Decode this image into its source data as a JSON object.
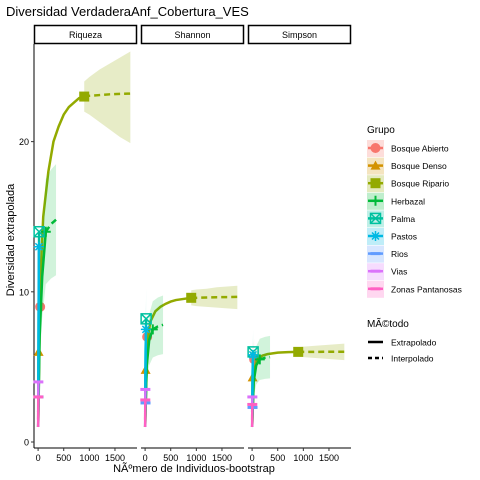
{
  "chart_data": {
    "type": "line",
    "title": "Diversidad VerdaderaAnf_Cobertura_VES",
    "xlabel": "NÃºmero de Individuos-bootstrap",
    "ylabel": "Diversidad extrapolada",
    "facets": [
      "Riqueza",
      "Shannon",
      "Simpson"
    ],
    "xlim": [
      -80,
      1930
    ],
    "ylim": [
      -0.4,
      26.5
    ],
    "x_ticks": [
      0,
      500,
      1000,
      1500
    ],
    "y_ticks": [
      0,
      10,
      20
    ],
    "grid": false,
    "legend_position": "right",
    "legend_group_title": "Grupo",
    "legend_method_title": "MÃ©todo",
    "methods": [
      "Extrapolado",
      "Interpolado"
    ],
    "series": [
      {
        "name": "Bosque Abierto",
        "color": "#F8766D",
        "shape": "circle",
        "observed": {
          "Riqueza": [
            40,
            9
          ],
          "Shannon": [
            40,
            7
          ],
          "Simpson": [
            40,
            5.5
          ]
        },
        "points": {
          "Riqueza": [
            [
              2,
              1
            ],
            [
              15,
              5
            ],
            [
              30,
              8
            ],
            [
              40,
              9
            ]
          ],
          "Shannon": [
            [
              2,
              1
            ],
            [
              15,
              5
            ],
            [
              30,
              6.5
            ],
            [
              40,
              7
            ]
          ],
          "Simpson": [
            [
              2,
              1
            ],
            [
              15,
              4
            ],
            [
              30,
              5.2
            ],
            [
              40,
              5.5
            ]
          ]
        }
      },
      {
        "name": "Bosque Denso",
        "color": "#D39200",
        "shape": "triangle",
        "observed": {
          "Riqueza": [
            10,
            6
          ],
          "Shannon": [
            10,
            4.8
          ],
          "Simpson": [
            10,
            4.3
          ]
        },
        "points": {
          "Riqueza": [
            [
              2,
              1.5
            ],
            [
              6,
              4
            ],
            [
              10,
              6
            ]
          ],
          "Shannon": [
            [
              2,
              1.5
            ],
            [
              6,
              3.5
            ],
            [
              10,
              4.8
            ]
          ],
          "Simpson": [
            [
              2,
              1.5
            ],
            [
              6,
              3.2
            ],
            [
              10,
              4.3
            ]
          ]
        }
      },
      {
        "name": "Bosque Ripario",
        "color": "#93AA00",
        "shape": "square",
        "observed": {
          "Riqueza": [
            900,
            23
          ],
          "Shannon": [
            900,
            9.6
          ],
          "Simpson": [
            900,
            6
          ]
        },
        "points": {
          "Riqueza": [
            [
              2,
              1
            ],
            [
              30,
              8
            ],
            [
              60,
              12
            ],
            [
              100,
              15
            ],
            [
              200,
              18
            ],
            [
              300,
              20
            ],
            [
              400,
              21
            ],
            [
              500,
              21.8
            ],
            [
              600,
              22.3
            ],
            [
              700,
              22.6
            ],
            [
              800,
              22.9
            ],
            [
              900,
              23
            ],
            [
              1000,
              23.05
            ],
            [
              1200,
              23.1
            ],
            [
              1400,
              23.15
            ],
            [
              1600,
              23.18
            ],
            [
              1800,
              23.2
            ]
          ],
          "Shannon": [
            [
              2,
              1
            ],
            [
              30,
              5
            ],
            [
              60,
              7
            ],
            [
              100,
              8
            ],
            [
              200,
              8.7
            ],
            [
              300,
              9
            ],
            [
              400,
              9.2
            ],
            [
              500,
              9.35
            ],
            [
              600,
              9.45
            ],
            [
              700,
              9.5
            ],
            [
              800,
              9.55
            ],
            [
              900,
              9.6
            ],
            [
              1000,
              9.6
            ],
            [
              1200,
              9.62
            ],
            [
              1400,
              9.64
            ],
            [
              1600,
              9.65
            ],
            [
              1800,
              9.66
            ]
          ],
          "Simpson": [
            [
              2,
              1
            ],
            [
              30,
              4
            ],
            [
              60,
              5
            ],
            [
              100,
              5.5
            ],
            [
              200,
              5.75
            ],
            [
              300,
              5.85
            ],
            [
              400,
              5.9
            ],
            [
              500,
              5.95
            ],
            [
              600,
              5.97
            ],
            [
              700,
              5.98
            ],
            [
              800,
              5.99
            ],
            [
              900,
              6
            ],
            [
              1000,
              6
            ],
            [
              1200,
              6
            ],
            [
              1400,
              6.01
            ],
            [
              1600,
              6.01
            ],
            [
              1800,
              6.01
            ]
          ]
        },
        "band": {
          "Riqueza": [
            [
              900,
              22,
              24
            ],
            [
              1000,
              21.8,
              24.3
            ],
            [
              1200,
              21.3,
              24.8
            ],
            [
              1400,
              20.8,
              25.2
            ],
            [
              1600,
              20.3,
              25.6
            ],
            [
              1800,
              19.9,
              26
            ]
          ],
          "Shannon": [
            [
              900,
              9.1,
              10.1
            ],
            [
              1000,
              9.05,
              10.15
            ],
            [
              1200,
              9,
              10.2
            ],
            [
              1400,
              8.95,
              10.3
            ],
            [
              1600,
              8.9,
              10.35
            ],
            [
              1800,
              8.85,
              10.4
            ]
          ],
          "Simpson": [
            [
              900,
              5.7,
              6.3
            ],
            [
              1000,
              5.65,
              6.35
            ],
            [
              1200,
              5.6,
              6.4
            ],
            [
              1400,
              5.55,
              6.45
            ],
            [
              1600,
              5.5,
              6.5
            ],
            [
              1800,
              5.45,
              6.55
            ]
          ]
        }
      },
      {
        "name": "Herbazal",
        "color": "#00BA38",
        "shape": "plus",
        "observed": {
          "Riqueza": [
            150,
            14
          ],
          "Shannon": [
            150,
            7.5
          ],
          "Simpson": [
            150,
            5.5
          ]
        },
        "points": {
          "Riqueza": [
            [
              2,
              1
            ],
            [
              30,
              7
            ],
            [
              80,
              11
            ],
            [
              150,
              14
            ],
            [
              250,
              14.5
            ],
            [
              350,
              14.8
            ]
          ],
          "Shannon": [
            [
              2,
              1
            ],
            [
              30,
              5
            ],
            [
              80,
              6.8
            ],
            [
              150,
              7.5
            ],
            [
              250,
              7.7
            ],
            [
              350,
              7.8
            ]
          ],
          "Simpson": [
            [
              2,
              1
            ],
            [
              30,
              4
            ],
            [
              80,
              5.1
            ],
            [
              150,
              5.5
            ],
            [
              250,
              5.6
            ],
            [
              350,
              5.65
            ]
          ]
        }
      },
      {
        "name": "Palma",
        "color": "#00C19F",
        "shape": "boxcross",
        "observed": {
          "Riqueza": [
            20,
            14
          ],
          "Shannon": [
            20,
            8.2
          ],
          "Simpson": [
            20,
            6
          ]
        },
        "points": {
          "Riqueza": [
            [
              2,
              2
            ],
            [
              10,
              8
            ],
            [
              20,
              14
            ]
          ],
          "Shannon": [
            [
              2,
              2
            ],
            [
              10,
              6
            ],
            [
              20,
              8.2
            ]
          ],
          "Simpson": [
            [
              2,
              2
            ],
            [
              10,
              4.5
            ],
            [
              20,
              6
            ]
          ]
        }
      },
      {
        "name": "Pastos",
        "color": "#00B9E3",
        "shape": "asterisk",
        "observed": {
          "Riqueza": [
            15,
            13
          ],
          "Shannon": [
            15,
            7.5
          ],
          "Simpson": [
            15,
            5.8
          ]
        },
        "points": {
          "Riqueza": [
            [
              2,
              1
            ],
            [
              8,
              7
            ],
            [
              15,
              13
            ]
          ],
          "Shannon": [
            [
              2,
              1
            ],
            [
              8,
              5
            ],
            [
              15,
              7.5
            ]
          ],
          "Simpson": [
            [
              2,
              1
            ],
            [
              8,
              4
            ],
            [
              15,
              5.8
            ]
          ]
        }
      },
      {
        "name": "Rios",
        "color": "#619CFF",
        "shape": "line",
        "observed": {
          "Riqueza": [
            8,
            3
          ],
          "Shannon": [
            8,
            2.6
          ],
          "Simpson": [
            8,
            2.3
          ]
        },
        "points": {
          "Riqueza": [
            [
              2,
              1
            ],
            [
              5,
              2
            ],
            [
              8,
              3
            ]
          ],
          "Shannon": [
            [
              2,
              1
            ],
            [
              5,
              2
            ],
            [
              8,
              2.6
            ]
          ],
          "Simpson": [
            [
              2,
              1
            ],
            [
              5,
              1.8
            ],
            [
              8,
              2.3
            ]
          ]
        }
      },
      {
        "name": "Vias",
        "color": "#DB72FB",
        "shape": "line",
        "observed": {
          "Riqueza": [
            5,
            4
          ],
          "Shannon": [
            5,
            3.5
          ],
          "Simpson": [
            5,
            3
          ]
        },
        "points": {
          "Riqueza": [
            [
              2,
              1.5
            ],
            [
              5,
              4
            ]
          ],
          "Shannon": [
            [
              2,
              1.5
            ],
            [
              5,
              3.5
            ]
          ],
          "Simpson": [
            [
              2,
              1.5
            ],
            [
              5,
              3
            ]
          ]
        }
      },
      {
        "name": "Zonas Pantanosas",
        "color": "#FF61C3",
        "shape": "line",
        "observed": {
          "Riqueza": [
            4,
            3
          ],
          "Shannon": [
            4,
            2.8
          ],
          "Simpson": [
            4,
            2.5
          ]
        },
        "points": {
          "Riqueza": [
            [
              1,
              1
            ],
            [
              4,
              3
            ]
          ],
          "Shannon": [
            [
              1,
              1
            ],
            [
              4,
              2.8
            ]
          ],
          "Simpson": [
            [
              1,
              1
            ],
            [
              4,
              2.5
            ]
          ]
        }
      }
    ]
  }
}
